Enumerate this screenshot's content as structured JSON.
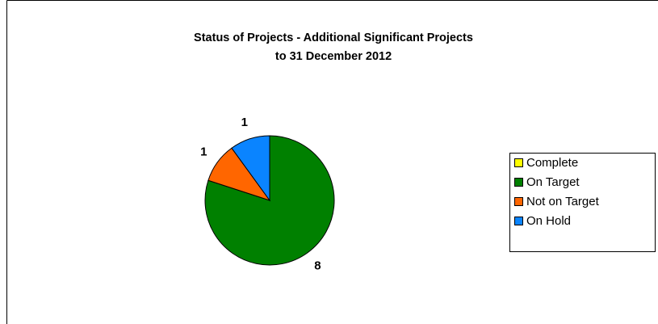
{
  "chart_data": {
    "type": "pie",
    "title": [
      "Status of Projects - Additional Significant Projects",
      "to 31 December 2012"
    ],
    "categories": [
      "Complete",
      "On Target",
      "Not on Target",
      "On Hold"
    ],
    "values": [
      0,
      8,
      1,
      1
    ],
    "colors": [
      "#ffff00",
      "#008000",
      "#ff6600",
      "#0a84ff"
    ],
    "legend": "right"
  }
}
